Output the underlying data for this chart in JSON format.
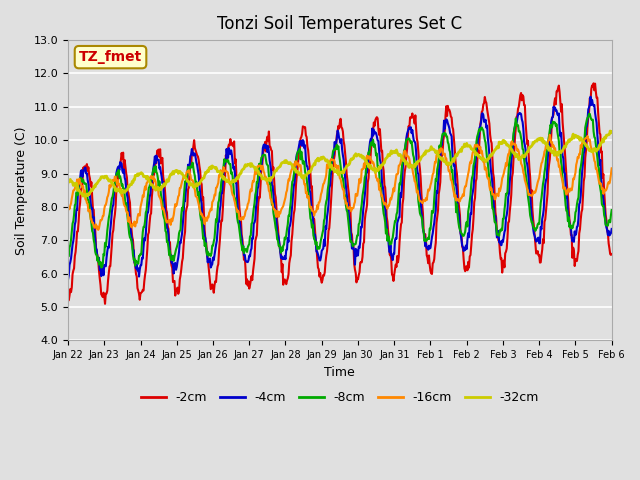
{
  "title": "Tonzi Soil Temperatures Set C",
  "xlabel": "Time",
  "ylabel": "Soil Temperature (C)",
  "ylim": [
    4.0,
    13.0
  ],
  "yticks": [
    4.0,
    5.0,
    6.0,
    7.0,
    8.0,
    9.0,
    10.0,
    11.0,
    12.0,
    13.0
  ],
  "xtick_labels": [
    "Jan 22",
    "Jan 23",
    "Jan 24",
    "Jan 25",
    "Jan 26",
    "Jan 27",
    "Jan 28",
    "Jan 29",
    "Jan 30",
    "Jan 31",
    "Feb 1",
    "Feb 2",
    "Feb 3",
    "Feb 4",
    "Feb 5",
    "Feb 6"
  ],
  "legend_labels": [
    "-2cm",
    "-4cm",
    "-8cm",
    "-16cm",
    "-32cm"
  ],
  "annotation_text": "TZ_fmet",
  "annotation_color": "#cc0000",
  "annotation_bg": "#ffffcc",
  "annotation_border": "#aa8800",
  "plot_bg_color": "#e0e0e0",
  "grid_color": "#ffffff",
  "line_colors": [
    "#dd0000",
    "#0000cc",
    "#00aa00",
    "#ff8800",
    "#cccc00"
  ],
  "line_widths": [
    1.5,
    1.5,
    1.5,
    1.5,
    2.0
  ]
}
